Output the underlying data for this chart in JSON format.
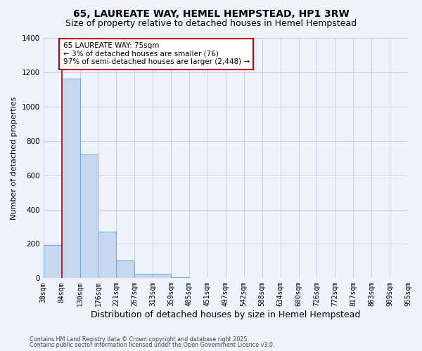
{
  "title": "65, LAUREATE WAY, HEMEL HEMPSTEAD, HP1 3RW",
  "subtitle": "Size of property relative to detached houses in Hemel Hempstead",
  "xlabel": "Distribution of detached houses by size in Hemel Hempstead",
  "ylabel": "Number of detached properties",
  "bin_labels": [
    "38sqm",
    "84sqm",
    "130sqm",
    "176sqm",
    "221sqm",
    "267sqm",
    "313sqm",
    "359sqm",
    "405sqm",
    "451sqm",
    "497sqm",
    "542sqm",
    "588sqm",
    "634sqm",
    "680sqm",
    "726sqm",
    "772sqm",
    "817sqm",
    "863sqm",
    "909sqm",
    "955sqm"
  ],
  "bar_values": [
    193,
    1163,
    720,
    270,
    104,
    27,
    27,
    5,
    2,
    2,
    2,
    2,
    1,
    0,
    0,
    0,
    0,
    0,
    0,
    0
  ],
  "bar_color": "#c5d8f0",
  "bar_edge_color": "#6aaad4",
  "annotation_text": "65 LAUREATE WAY: 75sqm\n← 3% of detached houses are smaller (76)\n97% of semi-detached houses are larger (2,448) →",
  "ylim": [
    0,
    1400
  ],
  "yticks": [
    0,
    200,
    400,
    600,
    800,
    1000,
    1200,
    1400
  ],
  "footer1": "Contains HM Land Registry data © Crown copyright and database right 2025.",
  "footer2": "Contains public sector information licensed under the Open Government Licence v3.0.",
  "bg_color": "#eef2fb",
  "grid_color": "#c5cde8",
  "title_fontsize": 10,
  "subtitle_fontsize": 9,
  "xlabel_fontsize": 9,
  "ylabel_fontsize": 8,
  "tick_fontsize": 7,
  "annotation_box_color": "#ffffff",
  "annotation_box_edge": "#cc0000",
  "red_line_color": "#cc0000",
  "red_line_x": 1.0,
  "annotation_fontsize": 7.5,
  "footer_fontsize": 5.8
}
